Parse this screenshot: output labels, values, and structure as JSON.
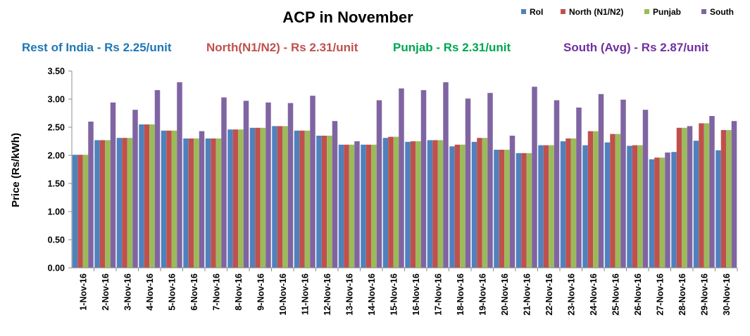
{
  "chart_data": {
    "type": "bar",
    "title": "ACP in November",
    "xlabel": "",
    "ylabel": "Price (Rs/kWh)",
    "ylim": [
      0,
      3.5
    ],
    "ytick_step": 0.5,
    "ytick_labels": [
      "0.00",
      "0.50",
      "1.00",
      "1.50",
      "2.00",
      "2.50",
      "3.00",
      "3.50"
    ],
    "grid": false,
    "legend_position": "top-right",
    "categories": [
      "1-Nov-16",
      "2-Nov-16",
      "3-Nov-16",
      "4-Nov-16",
      "5-Nov-16",
      "6-Nov-16",
      "7-Nov-16",
      "8-Nov-16",
      "9-Nov-16",
      "10-Nov-16",
      "11-Nov-16",
      "12-Nov-16",
      "13-Nov-16",
      "14-Nov-16",
      "15-Nov-16",
      "16-Nov-16",
      "17-Nov-16",
      "18-Nov-16",
      "19-Nov-16",
      "20-Nov-16",
      "21-Nov-16",
      "22-Nov-16",
      "23-Nov-16",
      "24-Nov-16",
      "25-Nov-16",
      "26-Nov-16",
      "27-Nov-16",
      "28-Nov-16",
      "29-Nov-16",
      "30-Nov-16"
    ],
    "series": [
      {
        "name": "RoI",
        "color": "#4F81BD",
        "values": [
          2.01,
          2.27,
          2.31,
          2.55,
          2.44,
          2.3,
          2.3,
          2.46,
          2.49,
          2.52,
          2.44,
          2.35,
          2.19,
          2.19,
          2.31,
          2.24,
          2.27,
          2.16,
          2.24,
          2.1,
          2.04,
          2.18,
          2.25,
          2.18,
          2.23,
          2.17,
          1.93,
          2.06,
          2.26,
          2.09
        ]
      },
      {
        "name": "North (N1/N2)",
        "color": "#C0504D",
        "values": [
          2.01,
          2.27,
          2.31,
          2.55,
          2.44,
          2.3,
          2.3,
          2.46,
          2.49,
          2.52,
          2.44,
          2.35,
          2.19,
          2.19,
          2.33,
          2.25,
          2.27,
          2.19,
          2.31,
          2.1,
          2.04,
          2.18,
          2.3,
          2.43,
          2.38,
          2.18,
          1.96,
          2.49,
          2.57,
          2.45
        ]
      },
      {
        "name": "Punjab",
        "color": "#9BBB59",
        "values": [
          2.01,
          2.27,
          2.31,
          2.55,
          2.44,
          2.3,
          2.3,
          2.46,
          2.49,
          2.52,
          2.44,
          2.35,
          2.19,
          2.19,
          2.33,
          2.25,
          2.27,
          2.19,
          2.31,
          2.1,
          2.04,
          2.18,
          2.3,
          2.43,
          2.38,
          2.18,
          1.96,
          2.49,
          2.57,
          2.45
        ]
      },
      {
        "name": "South",
        "color": "#8064A2",
        "values": [
          2.6,
          2.94,
          2.81,
          3.16,
          3.3,
          2.43,
          3.03,
          2.97,
          2.94,
          2.93,
          3.06,
          2.61,
          2.25,
          2.98,
          3.19,
          3.16,
          3.3,
          3.01,
          3.11,
          2.35,
          3.22,
          2.98,
          2.85,
          3.09,
          2.99,
          2.81,
          2.05,
          2.52,
          2.7,
          2.61
        ]
      }
    ]
  },
  "summary": [
    {
      "text": "Rest of India - Rs 2.25/unit",
      "color": "#1F77B4"
    },
    {
      "text": "North(N1/N2) - Rs 2.31/unit",
      "color": "#C0504D"
    },
    {
      "text": "Punjab - Rs 2.31/unit",
      "color": "#00A651"
    },
    {
      "text": "South (Avg) - Rs 2.87/unit",
      "color": "#7030A0"
    }
  ]
}
